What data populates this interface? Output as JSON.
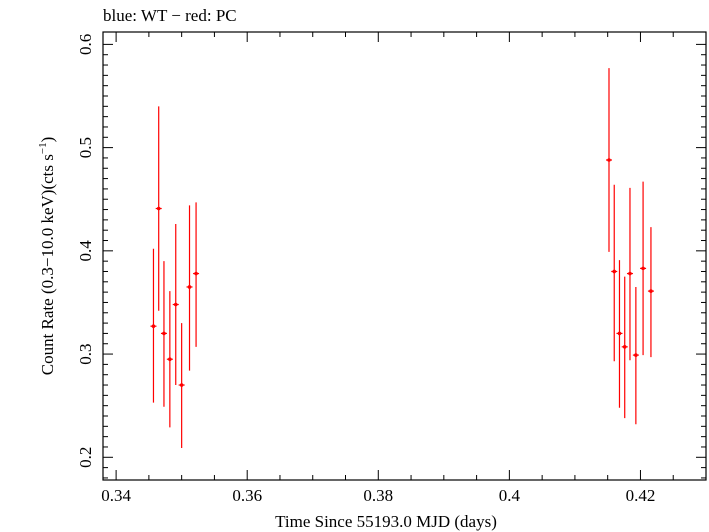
{
  "chart_data": {
    "type": "scatter",
    "title": "blue: WT − red: PC",
    "xlabel": "Time Since 55193.0 MJD (days)",
    "ylabel_prefix": "Count Rate (0.3−10.0 keV)(cts s",
    "ylabel_exponent": "−1",
    "ylabel_suffix": ")",
    "xlim": [
      0.338,
      0.43
    ],
    "ylim": [
      0.178,
      0.612
    ],
    "x_ticks": [
      0.34,
      0.36,
      0.38,
      0.4,
      0.42
    ],
    "x_tick_labels": [
      "0.34",
      "0.36",
      "0.38",
      "0.4",
      "0.42"
    ],
    "y_ticks": [
      0.2,
      0.3,
      0.4,
      0.5,
      0.6
    ],
    "y_tick_labels": [
      "0.2",
      "0.3",
      "0.4",
      "0.5",
      "0.6"
    ],
    "grid": false,
    "series": [
      {
        "name": "PC",
        "color": "#ff0000",
        "points": [
          {
            "x": 0.3457,
            "y": 0.327,
            "ylo": 0.253,
            "yhi": 0.402
          },
          {
            "x": 0.3465,
            "y": 0.441,
            "ylo": 0.342,
            "yhi": 0.54
          },
          {
            "x": 0.3473,
            "y": 0.32,
            "ylo": 0.249,
            "yhi": 0.39
          },
          {
            "x": 0.3482,
            "y": 0.295,
            "ylo": 0.229,
            "yhi": 0.361
          },
          {
            "x": 0.3491,
            "y": 0.348,
            "ylo": 0.27,
            "yhi": 0.426
          },
          {
            "x": 0.35,
            "y": 0.27,
            "ylo": 0.209,
            "yhi": 0.33
          },
          {
            "x": 0.3512,
            "y": 0.365,
            "ylo": 0.284,
            "yhi": 0.444
          },
          {
            "x": 0.3522,
            "y": 0.378,
            "ylo": 0.307,
            "yhi": 0.447
          },
          {
            "x": 0.4152,
            "y": 0.488,
            "ylo": 0.399,
            "yhi": 0.577
          },
          {
            "x": 0.416,
            "y": 0.38,
            "ylo": 0.293,
            "yhi": 0.464
          },
          {
            "x": 0.4168,
            "y": 0.32,
            "ylo": 0.248,
            "yhi": 0.391
          },
          {
            "x": 0.4176,
            "y": 0.307,
            "ylo": 0.238,
            "yhi": 0.375
          },
          {
            "x": 0.4184,
            "y": 0.378,
            "ylo": 0.294,
            "yhi": 0.461
          },
          {
            "x": 0.4193,
            "y": 0.299,
            "ylo": 0.232,
            "yhi": 0.365
          },
          {
            "x": 0.4204,
            "y": 0.383,
            "ylo": 0.299,
            "yhi": 0.467
          },
          {
            "x": 0.4216,
            "y": 0.361,
            "ylo": 0.297,
            "yhi": 0.423
          }
        ]
      }
    ]
  }
}
